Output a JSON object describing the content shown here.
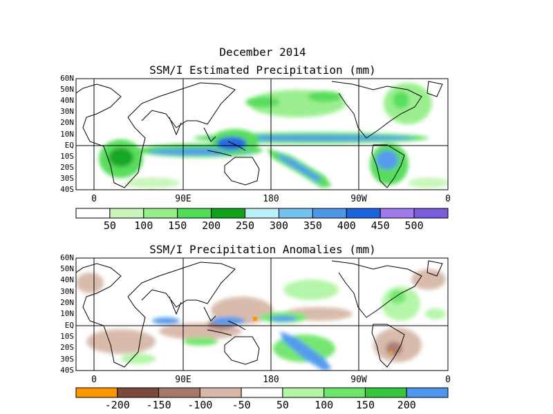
{
  "title_line1": "December 2014",
  "panel1": {
    "title": "SSM/I Estimated Precipitation (mm)",
    "lat_labels": [
      "60N",
      "50N",
      "40N",
      "30N",
      "20N",
      "10N",
      "EQ",
      "10S",
      "20S",
      "30S",
      "40S"
    ],
    "lon_labels": [
      "0",
      "90E",
      "180",
      "90W",
      "0"
    ],
    "colorbar": {
      "colors": [
        "#ffffff",
        "#c8f5b9",
        "#96ee8a",
        "#51dc55",
        "#0ea31c",
        "#b9f1f6",
        "#74c2f0",
        "#4d96ea",
        "#1c63e0",
        "#a17aee",
        "#7a5ddb"
      ],
      "labels": [
        "50",
        "100",
        "150",
        "200",
        "250",
        "300",
        "350",
        "400",
        "450",
        "500"
      ]
    }
  },
  "panel2": {
    "title": "SSM/I Precipitation Anomalies (mm)",
    "lat_labels": [
      "60N",
      "50N",
      "40N",
      "30N",
      "20N",
      "10N",
      "EQ",
      "10S",
      "20S",
      "30S",
      "40S"
    ],
    "lon_labels": [
      "0",
      "90E",
      "180",
      "90W",
      "0"
    ],
    "colorbar": {
      "colors": [
        "#ff9500",
        "#7b4a3b",
        "#a7796a",
        "#d7b8a8",
        "#ffffff",
        "#b2f5a5",
        "#6ee56a",
        "#36c43a",
        "#4d96ea"
      ],
      "labels": [
        "-200",
        "-150",
        "-100",
        "-50",
        "50",
        "100",
        "150",
        "200"
      ]
    }
  }
}
